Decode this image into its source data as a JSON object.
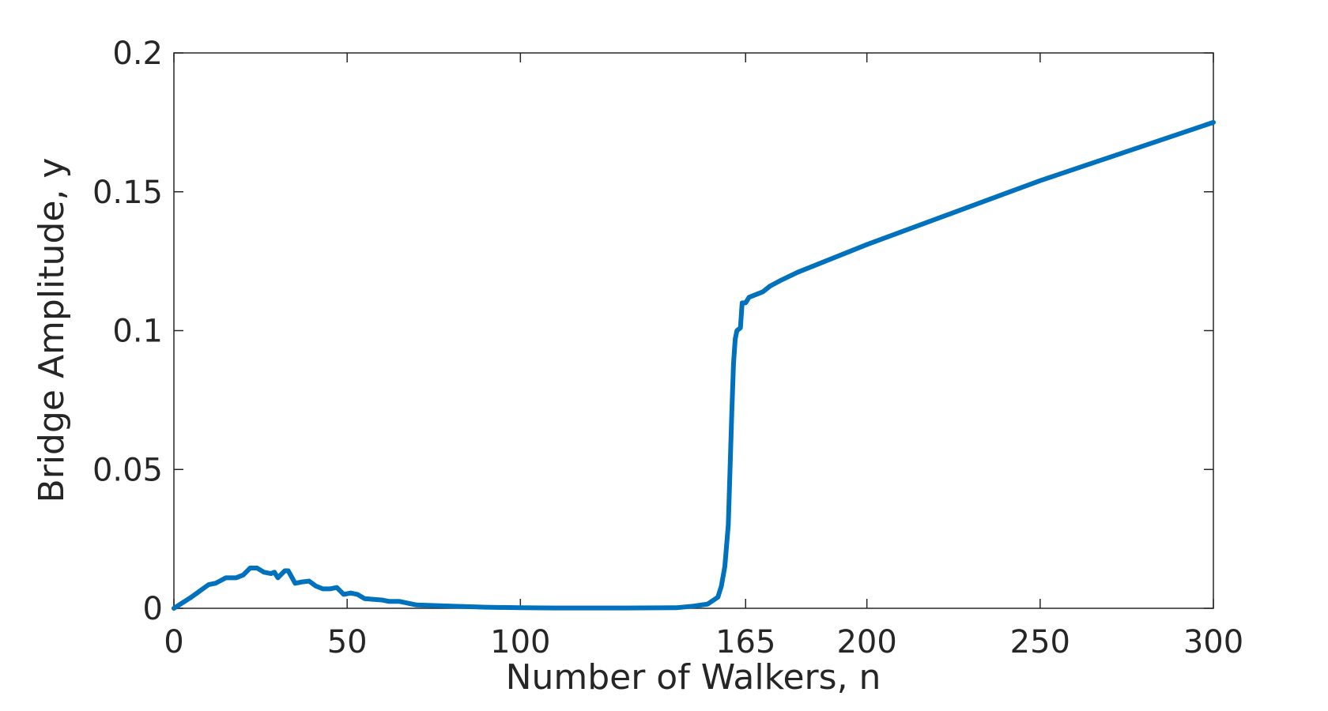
{
  "chart_data": {
    "type": "line",
    "x_label": "Number of Walkers, n",
    "y_label": "Bridge Amplitude, y",
    "xlim": [
      0,
      300
    ],
    "ylim": [
      0,
      0.2
    ],
    "xticks": [
      0,
      50,
      100,
      165,
      200,
      250,
      300
    ],
    "yticks": [
      0,
      0.05,
      0.1,
      0.15,
      0.2
    ],
    "grid": false,
    "series": [
      {
        "color": "#0072bd",
        "x": [
          0,
          5,
          10,
          12,
          15,
          18,
          20,
          22,
          24,
          26,
          28,
          29,
          30,
          32,
          33,
          35,
          37,
          39,
          41,
          43,
          45,
          47,
          49,
          51,
          53,
          55,
          60,
          62,
          65,
          70,
          80,
          90,
          100,
          110,
          130,
          145,
          150,
          154,
          157,
          158,
          159,
          160,
          160.5,
          161,
          161.5,
          162,
          162.5,
          163.5,
          164,
          165,
          166,
          168,
          170,
          172,
          175,
          180,
          200,
          250,
          300
        ],
        "values": [
          0,
          0.004,
          0.0085,
          0.009,
          0.011,
          0.011,
          0.012,
          0.0145,
          0.0145,
          0.013,
          0.0125,
          0.013,
          0.011,
          0.0135,
          0.0135,
          0.009,
          0.0095,
          0.0098,
          0.008,
          0.007,
          0.007,
          0.0075,
          0.005,
          0.0055,
          0.005,
          0.0035,
          0.003,
          0.0025,
          0.0025,
          0.0012,
          0.0008,
          0.0004,
          0.0002,
          0.0001,
          0.0001,
          0.0002,
          0.0008,
          0.0015,
          0.004,
          0.008,
          0.015,
          0.03,
          0.05,
          0.07,
          0.088,
          0.097,
          0.1,
          0.101,
          0.11,
          0.11,
          0.112,
          0.113,
          0.114,
          0.116,
          0.118,
          0.121,
          0.131,
          0.154,
          0.175
        ]
      }
    ]
  }
}
